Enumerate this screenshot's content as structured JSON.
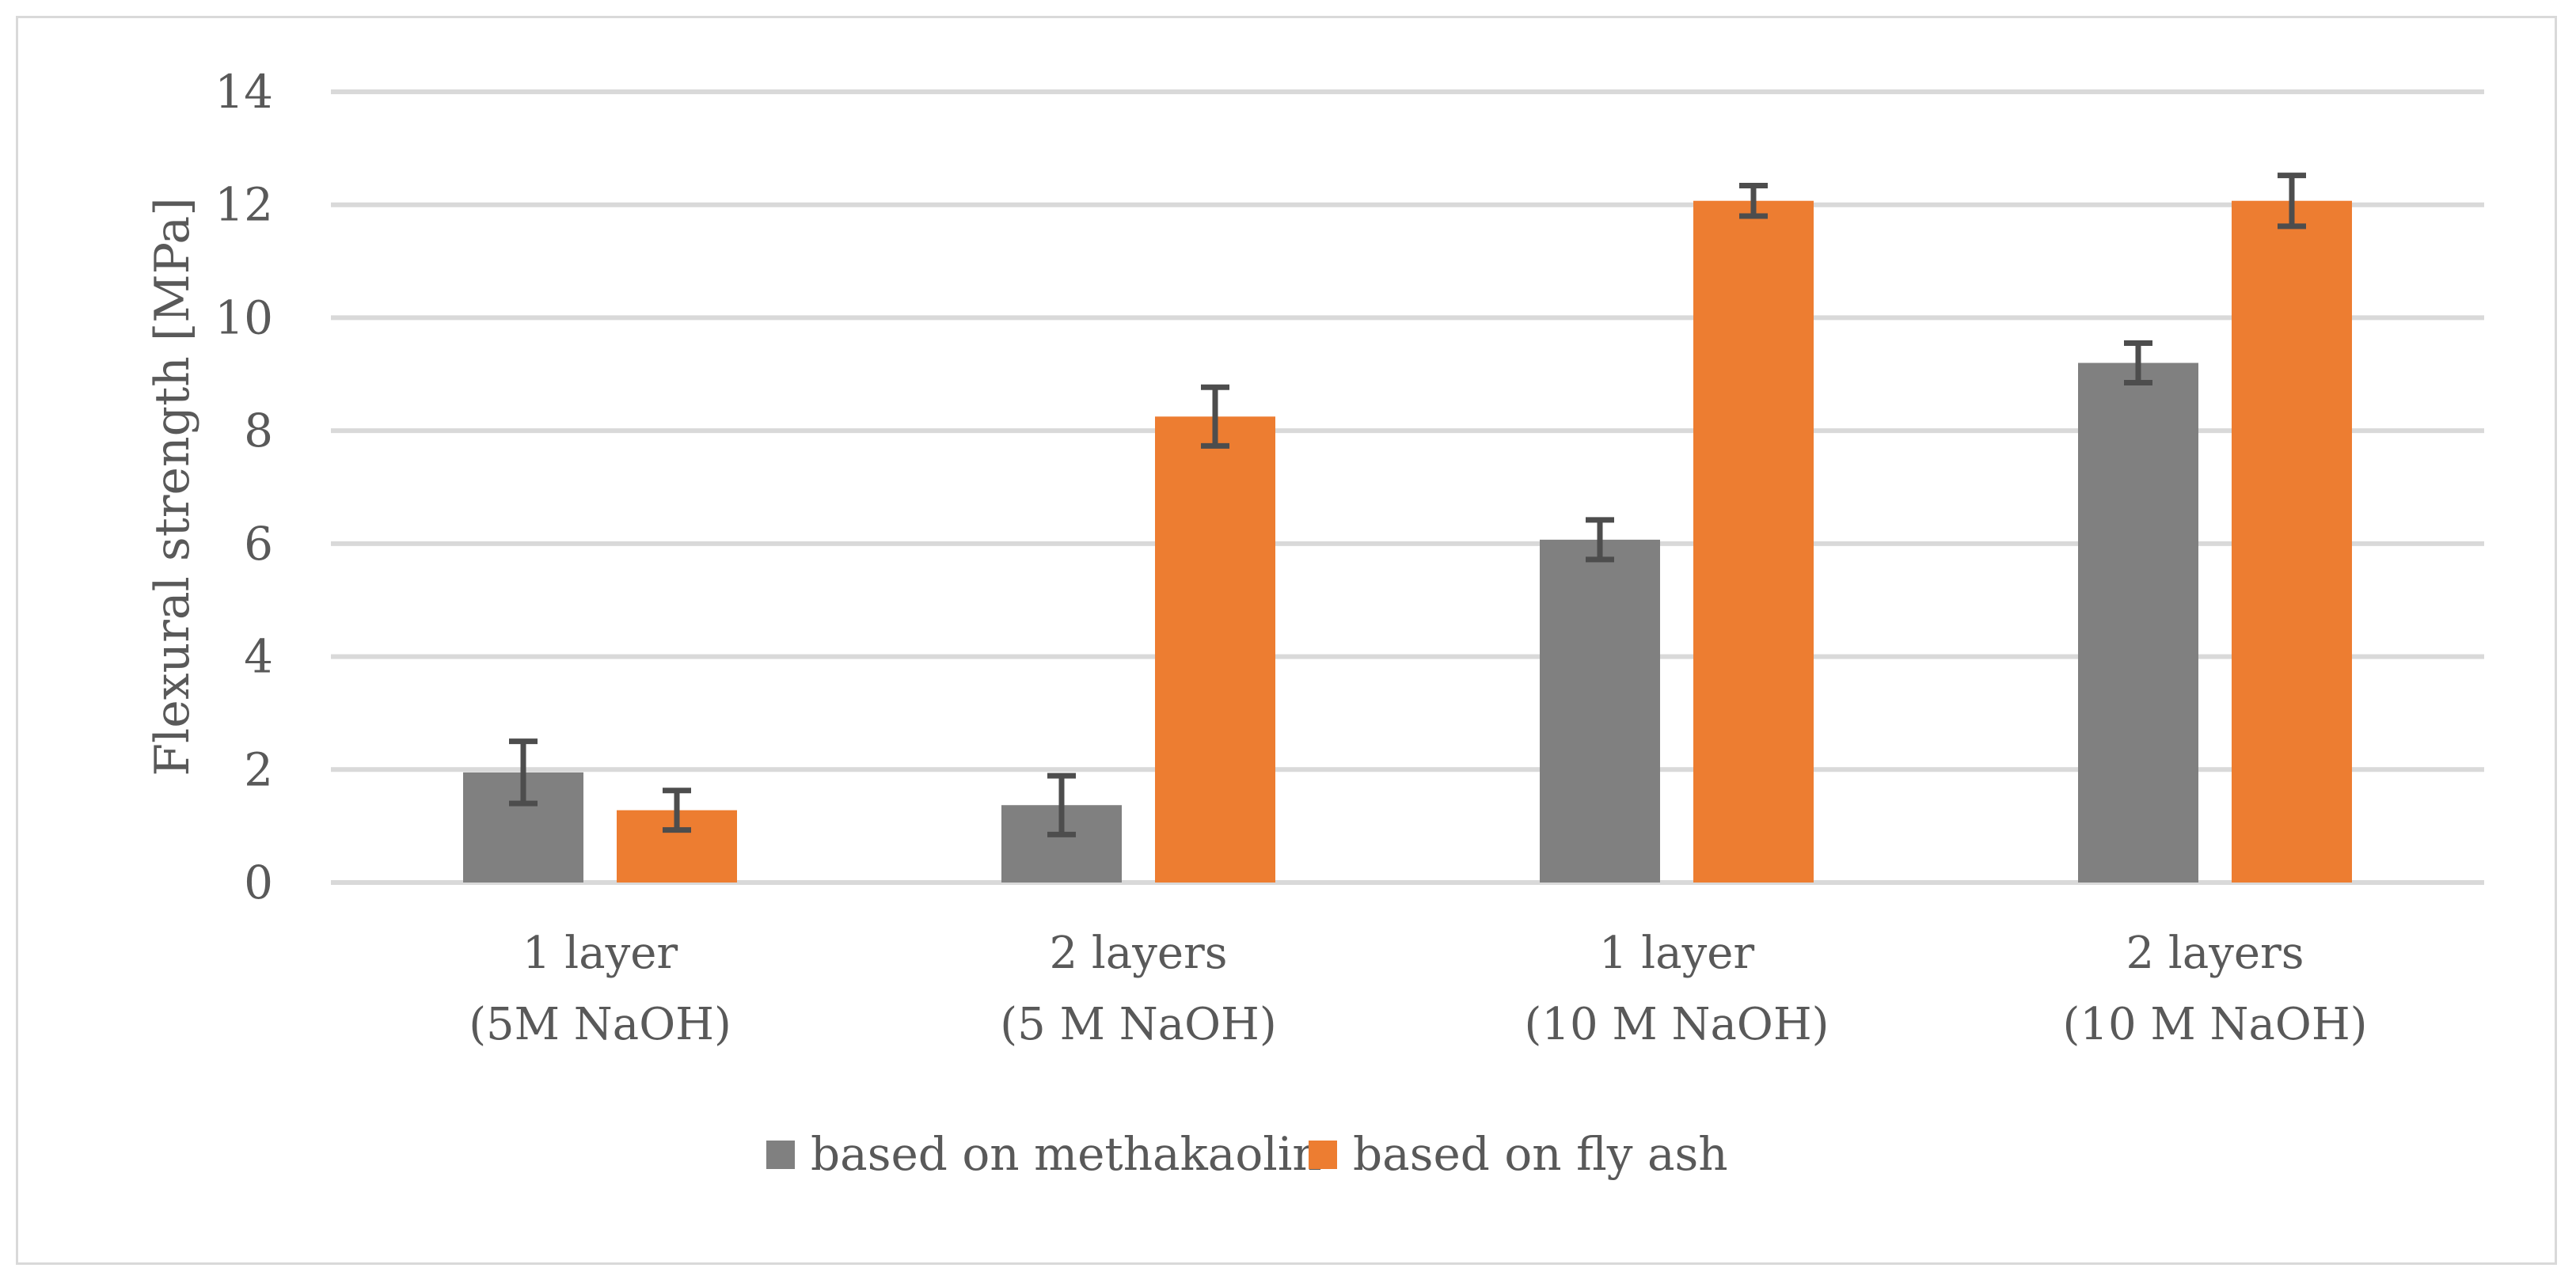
{
  "chart_data": {
    "type": "bar",
    "title": "",
    "xlabel": "",
    "ylabel": "Flexural strength [MPa]",
    "ylim": [
      0,
      14
    ],
    "yticks": [
      "0",
      "2",
      "4",
      "6",
      "8",
      "10",
      "12",
      "14"
    ],
    "grid": true,
    "legend_position": "bottom",
    "categories": [
      [
        "1 layer",
        "(5M NaOH)"
      ],
      [
        "2 layers",
        "(5 M NaOH)"
      ],
      [
        "1 layer",
        "(10 M NaOH)"
      ],
      [
        "2 layers",
        "(10 M NaOH)"
      ]
    ],
    "series": [
      {
        "name": "based on methakaolin",
        "color": "#808080",
        "values": [
          1.95,
          1.37,
          6.07,
          9.2
        ],
        "errors": [
          0.55,
          0.52,
          0.35,
          0.35
        ]
      },
      {
        "name": "based on fly ash",
        "color": "#ED7D31",
        "values": [
          1.28,
          8.25,
          12.07,
          12.07
        ],
        "errors": [
          0.35,
          0.52,
          0.27,
          0.45
        ]
      }
    ]
  }
}
